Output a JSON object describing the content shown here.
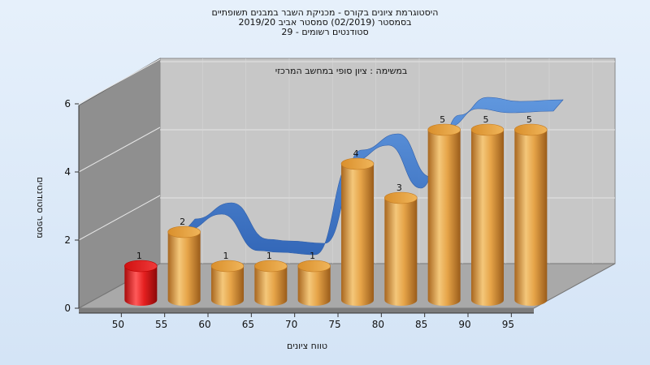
{
  "chart_data": {
    "type": "bar",
    "title_lines": [
      "היסטוגרמת ציונים בקורס - מכניקת השבר במבנים תשופתיים",
      "בסמסטר  (02/2019)  סמסטר אביב 2019/20",
      "סטודנטים רשומים - 29"
    ],
    "annotation": "במשימה : ציון סופי במחשב המרכזי",
    "xlabel": "טווח ציונים",
    "ylabel": "מספר סטודנטים",
    "x_ticks": [
      "50",
      "55",
      "60",
      "65",
      "70",
      "75",
      "80",
      "85",
      "90",
      "95"
    ],
    "y_ticks": [
      "0",
      "2",
      "4",
      "6"
    ],
    "ylim": [
      0,
      6
    ],
    "bars": [
      {
        "x": "50",
        "value": 1,
        "label": "1",
        "color": "#e21c1c"
      },
      {
        "x": "55",
        "value": 2,
        "label": "2",
        "color": "#e8a94a"
      },
      {
        "x": "60",
        "value": 1,
        "label": "1",
        "color": "#e8a94a"
      },
      {
        "x": "65",
        "value": 1,
        "label": "1",
        "color": "#e8a94a"
      },
      {
        "x": "70",
        "value": 1,
        "label": "1",
        "color": "#e8a94a"
      },
      {
        "x": "75",
        "value": 4,
        "label": "4",
        "color": "#e8a94a"
      },
      {
        "x": "80",
        "value": 3,
        "label": "3",
        "color": "#e8a94a"
      },
      {
        "x": "85",
        "value": 5,
        "label": "5",
        "color": "#e8a94a"
      },
      {
        "x": "90",
        "value": 5,
        "label": "5",
        "color": "#e8a94a"
      },
      {
        "x": "95",
        "value": 5,
        "label": "5",
        "color": "#e8a94a"
      }
    ],
    "ribbon_series": {
      "values": [
        0,
        0,
        2,
        1,
        0.5,
        0.5,
        3,
        3.5,
        5.5,
        6
      ],
      "color": "#3a78cf"
    },
    "grid": true,
    "colors": {
      "back_wall": "#c7c7c7",
      "side_wall": "#8f8f8f",
      "floor": "#a9a9a9"
    }
  }
}
